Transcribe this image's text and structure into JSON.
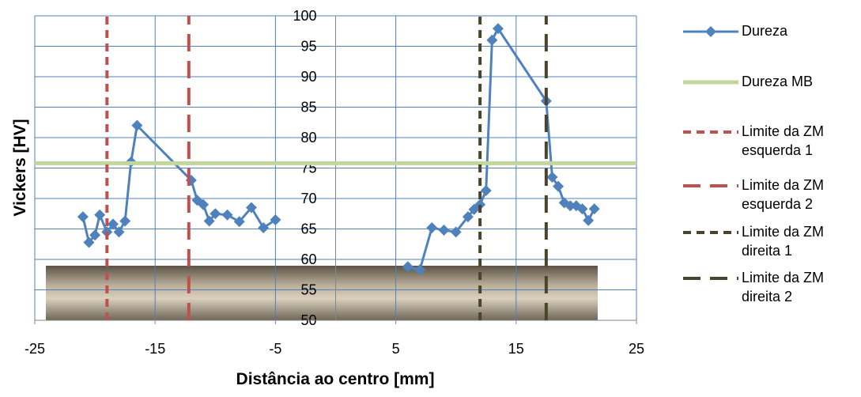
{
  "chart_data": {
    "type": "line",
    "x_label": "Distância ao centro [mm]",
    "y_label": "Vickers [HV]",
    "xlim": [
      -25,
      25
    ],
    "xticks": [
      -25,
      -15,
      -5,
      5,
      15,
      25
    ],
    "ylim": [
      50,
      100
    ],
    "yticks": [
      50,
      55,
      60,
      65,
      70,
      75,
      80,
      85,
      90,
      95,
      100
    ],
    "grid": true,
    "legend": "right",
    "series": [
      {
        "name": "Dureza",
        "color": "#4f81bd",
        "style": "solid-marker",
        "x": [
          -21,
          -20.5,
          -20,
          -19.6,
          -19,
          -18.5,
          -18,
          -17.5,
          -17,
          -16.5,
          -12,
          -11.5,
          -11,
          -10.5,
          -10,
          -9,
          -8,
          -7,
          -6,
          -5,
          null,
          6,
          7,
          8,
          9,
          10,
          11,
          11.5,
          12,
          12.5,
          13,
          13.5,
          17.5,
          18,
          18.5,
          19,
          19.5,
          20,
          20.5,
          21,
          21.5
        ],
        "values": [
          67,
          62.8,
          64,
          67.3,
          64.5,
          65.8,
          64.5,
          66.3,
          76,
          82,
          73,
          69.7,
          69,
          66.3,
          67.5,
          67.3,
          66.2,
          68.5,
          65.2,
          66.5,
          null,
          58.8,
          58.3,
          65.2,
          64.8,
          64.5,
          67,
          68.2,
          69,
          71.3,
          96,
          97.9,
          86,
          73.5,
          72,
          69.3,
          68.8,
          68.8,
          68.3,
          66.4,
          68.3
        ]
      },
      {
        "name": "Dureza MB",
        "color": "#c3d69b",
        "style": "solid",
        "x": [
          -25,
          25
        ],
        "values": [
          75.8,
          75.8
        ]
      },
      {
        "name": "Limite da ZM esquerda 1",
        "color": "#c0504d",
        "style": "short-dash",
        "x": [
          -19,
          -19
        ],
        "values": [
          50,
          100
        ]
      },
      {
        "name": "Limite da ZM esquerda 2",
        "color": "#c0504d",
        "style": "long-dash",
        "x": [
          -12.2,
          -12.2
        ],
        "values": [
          50,
          100
        ]
      },
      {
        "name": "Limite da ZM direita 1",
        "color": "#4a452a",
        "style": "short-dash",
        "x": [
          12,
          12
        ],
        "values": [
          50,
          100
        ]
      },
      {
        "name": "Limite da ZM direita 2",
        "color": "#4a452a",
        "style": "long-dash",
        "x": [
          17.5,
          17.5
        ],
        "values": [
          50,
          100
        ]
      }
    ]
  }
}
